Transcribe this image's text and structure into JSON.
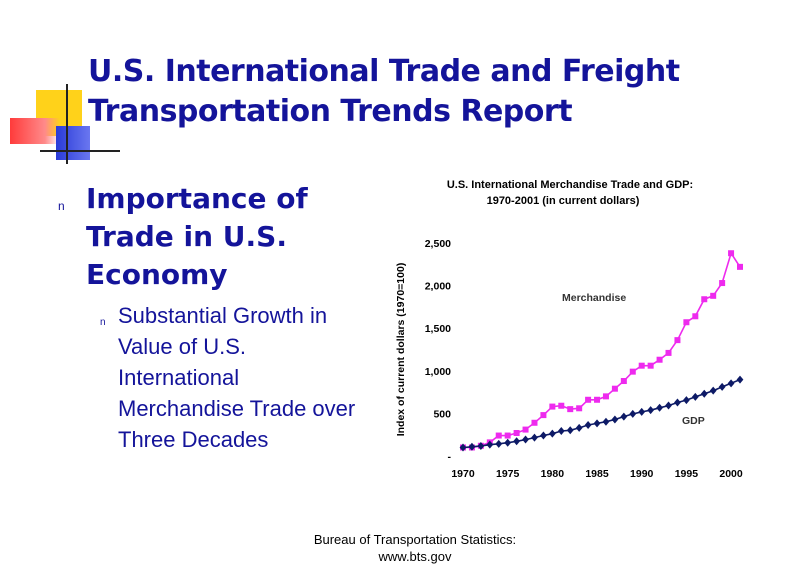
{
  "slide": {
    "title": "U.S. International Trade and Freight Transportation Trends Report",
    "heading": "Importance of Trade in U.S. Economy",
    "subtext": "Substantial Growth in Value of U.S. International Merchandise Trade over Three Decades",
    "footer_line1": "Bureau of Transportation Statistics:",
    "footer_line2": "www.bts.gov",
    "bullet_glyph": "n"
  },
  "colors": {
    "title": "#14149a",
    "merchandise": "#ee2aee",
    "gdp": "#0d1a66",
    "deco_yellow": "#ffd21a",
    "deco_red": "#ff3b3b",
    "deco_blue": "#2a3bd8"
  },
  "chart_data": {
    "type": "line",
    "title_line1": "U.S. International Merchandise Trade and GDP:",
    "title_line2": "1970-2001  (in current dollars)",
    "ylabel": "Index of current dollars (1970=100)",
    "xlabel": "",
    "ylim": [
      0,
      2500
    ],
    "xlim": [
      1970,
      2001
    ],
    "y_ticks": [
      0,
      500,
      1000,
      1500,
      2000,
      2500
    ],
    "y_tick_labels": [
      "-",
      "500",
      "1,000",
      "1,500",
      "2,000",
      "2,500"
    ],
    "x_ticks": [
      1970,
      1975,
      1980,
      1985,
      1990,
      1995,
      2000
    ],
    "x_tick_labels": [
      "1970",
      "1975",
      "1980",
      "1985",
      "1990",
      "1995",
      "2000"
    ],
    "x": [
      1970,
      1971,
      1972,
      1973,
      1974,
      1975,
      1976,
      1977,
      1978,
      1979,
      1980,
      1981,
      1982,
      1983,
      1984,
      1985,
      1986,
      1987,
      1988,
      1989,
      1990,
      1991,
      1992,
      1993,
      1994,
      1995,
      1996,
      1997,
      1998,
      1999,
      2000,
      2001
    ],
    "series": [
      {
        "name": "Merchandise",
        "label": "Merchandise",
        "marker": "square",
        "values": [
          100,
          100,
          120,
          160,
          240,
          240,
          270,
          310,
          390,
          480,
          580,
          590,
          550,
          560,
          660,
          660,
          700,
          790,
          880,
          990,
          1060,
          1060,
          1130,
          1210,
          1360,
          1570,
          1640,
          1840,
          1880,
          2030,
          2380,
          2220
        ]
      },
      {
        "name": "GDP",
        "label": "GDP",
        "marker": "diamond",
        "values": [
          100,
          108,
          118,
          133,
          143,
          156,
          173,
          193,
          216,
          241,
          262,
          294,
          302,
          330,
          364,
          383,
          402,
          428,
          462,
          494,
          518,
          538,
          566,
          592,
          628,
          656,
          694,
          730,
          767,
          811,
          853,
          897
        ]
      }
    ]
  }
}
